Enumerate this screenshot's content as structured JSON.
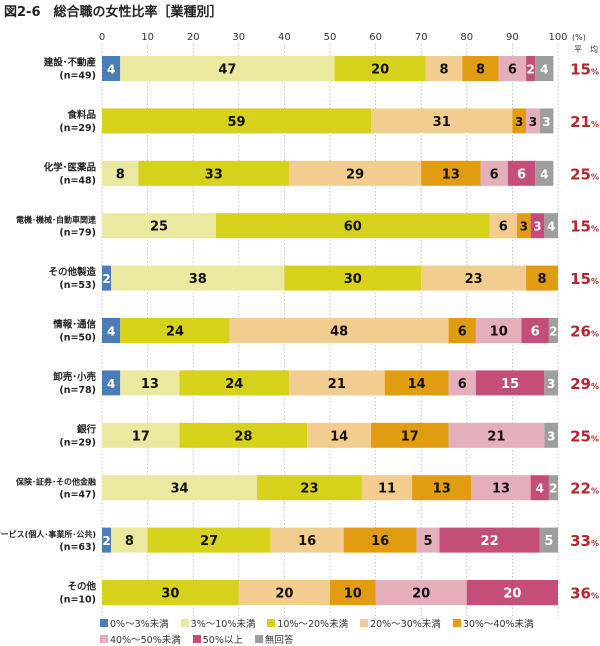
{
  "chart_data": {
    "type": "bar",
    "orientation": "horizontal",
    "stacked": true,
    "title": "図2-6　総合職の女性比率［業種別］",
    "xlim": [
      0,
      100
    ],
    "xticks": [
      "0",
      "10",
      "20",
      "30",
      "40",
      "50",
      "60",
      "70",
      "80",
      "90",
      "100"
    ],
    "x_unit": "(%)",
    "grid": true,
    "avg_header": "平　均",
    "avg_color": "#b3272e",
    "legend_position": "bottom",
    "series": [
      {
        "name": "0%～3%未満",
        "color": "#4a7cb9"
      },
      {
        "name": "3%～10%未満",
        "color": "#ebe8a0"
      },
      {
        "name": "10%～20%未満",
        "color": "#d6d11b"
      },
      {
        "name": "20%～30%未満",
        "color": "#f3cd90"
      },
      {
        "name": "30%～40%未満",
        "color": "#e29c12"
      },
      {
        "name": "40%～50%未満",
        "color": "#e4afbb"
      },
      {
        "name": "50%以上",
        "color": "#c54d79"
      },
      {
        "name": "無回答",
        "color": "#9e9e9e"
      }
    ],
    "categories": [
      {
        "label": "建設･不動産",
        "n": "(n=49)",
        "values": [
          4,
          47,
          20,
          8,
          8,
          6,
          2,
          4
        ],
        "avg": "15"
      },
      {
        "label": "食料品",
        "n": "(n=29)",
        "values": [
          0,
          0,
          59,
          31,
          3,
          3,
          0,
          3
        ],
        "avg": "21"
      },
      {
        "label": "化学･医薬品",
        "n": "(n=48)",
        "values": [
          0,
          8,
          33,
          29,
          13,
          6,
          6,
          4
        ],
        "avg": "25"
      },
      {
        "label": "電機･機械･自動車関連",
        "n": "(n=79)",
        "values": [
          0,
          25,
          60,
          6,
          3,
          0,
          3,
          4
        ],
        "avg": "15"
      },
      {
        "label": "その他製造",
        "n": "(n=53)",
        "values": [
          2,
          38,
          30,
          23,
          8,
          0,
          0,
          0
        ],
        "avg": "15"
      },
      {
        "label": "情報･通信",
        "n": "(n=50)",
        "values": [
          4,
          0,
          24,
          48,
          6,
          10,
          6,
          2
        ],
        "avg": "26"
      },
      {
        "label": "卸売･小売",
        "n": "(n=78)",
        "values": [
          4,
          13,
          24,
          21,
          14,
          6,
          15,
          3
        ],
        "avg": "29"
      },
      {
        "label": "銀行",
        "n": "(n=29)",
        "values": [
          0,
          17,
          28,
          14,
          17,
          21,
          0,
          3
        ],
        "avg": "25"
      },
      {
        "label": "保険･証券･その他金融",
        "n": "(n=47)",
        "values": [
          0,
          34,
          23,
          11,
          13,
          13,
          4,
          2
        ],
        "avg": "22"
      },
      {
        "label": "サービス(個人･事業所･公共)",
        "n": "(n=63)",
        "values": [
          2,
          8,
          27,
          16,
          16,
          5,
          22,
          5
        ],
        "avg": "33"
      },
      {
        "label": "その他",
        "n": "(n=10)",
        "values": [
          0,
          0,
          30,
          20,
          10,
          20,
          20,
          0
        ],
        "avg": "36"
      }
    ]
  }
}
